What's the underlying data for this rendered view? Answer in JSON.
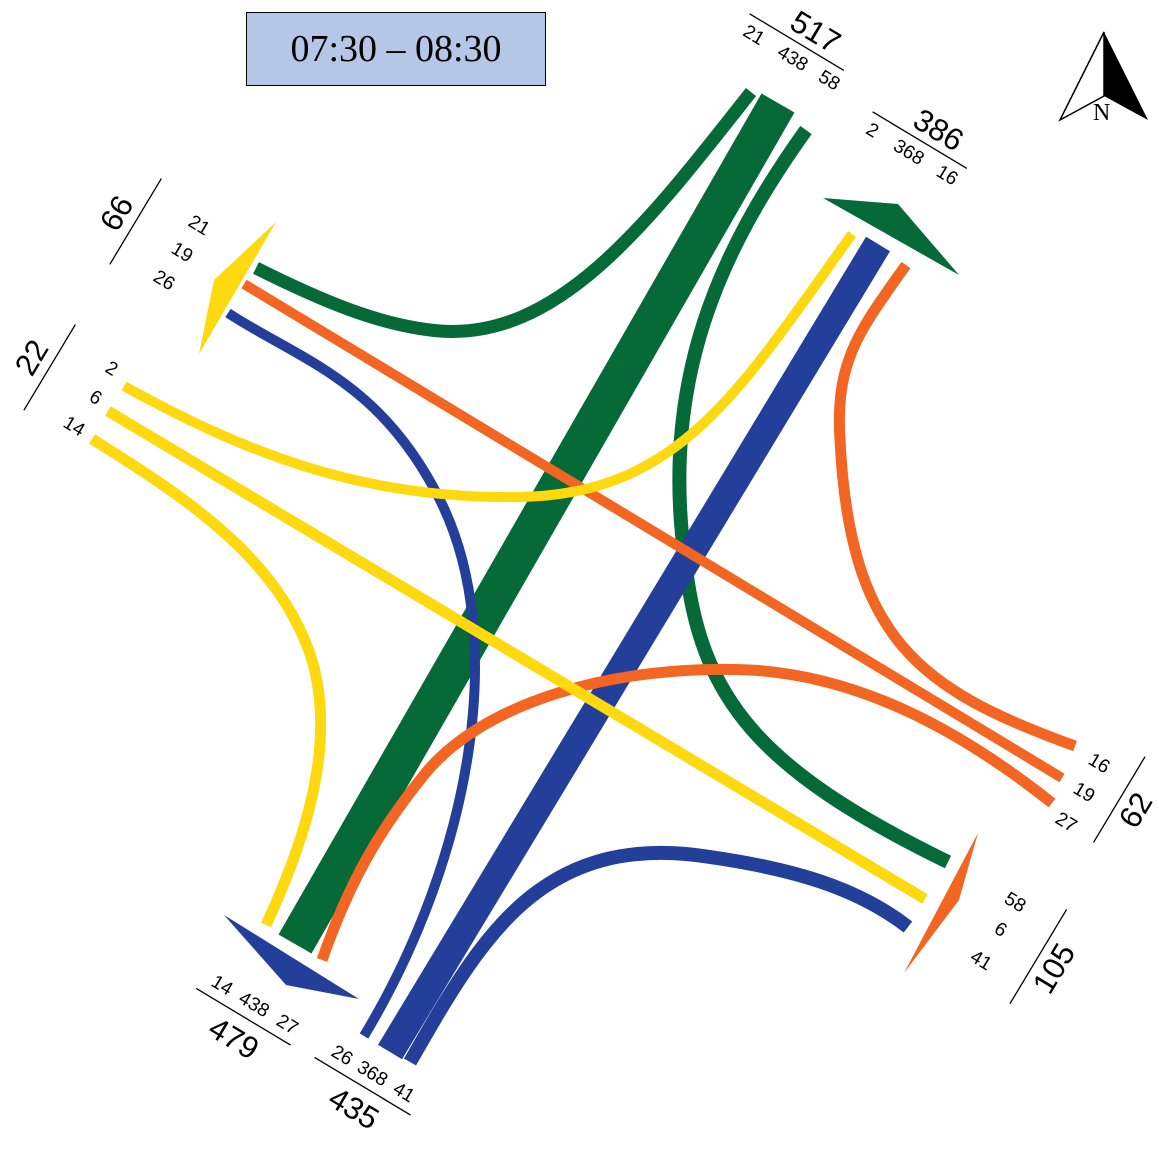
{
  "period": "07:30 – 08:30",
  "north_label": "N",
  "colors": {
    "green": "#066938",
    "blue": "#233f99",
    "orange": "#f26522",
    "yellow": "#ffd90f",
    "box": "#b4c7e7"
  },
  "approaches": {
    "north": {
      "total": "517",
      "flows": [
        "21",
        "438",
        "58"
      ],
      "exit_total": "386",
      "exit_flows": [
        "2",
        "368",
        "16"
      ]
    },
    "west": {
      "exit_total": "66",
      "exit_flows": [
        "21",
        "19",
        "26"
      ],
      "total": "22",
      "flows": [
        "2",
        "6",
        "14"
      ]
    },
    "east": {
      "total": "62",
      "flows": [
        "16",
        "19",
        "27"
      ],
      "exit_total": "105",
      "exit_flows": [
        "58",
        "6",
        "41"
      ]
    },
    "south": {
      "exit_total": "479",
      "exit_flows": [
        "14",
        "438",
        "27"
      ],
      "total": "435",
      "flows": [
        "26",
        "368",
        "41"
      ]
    }
  }
}
